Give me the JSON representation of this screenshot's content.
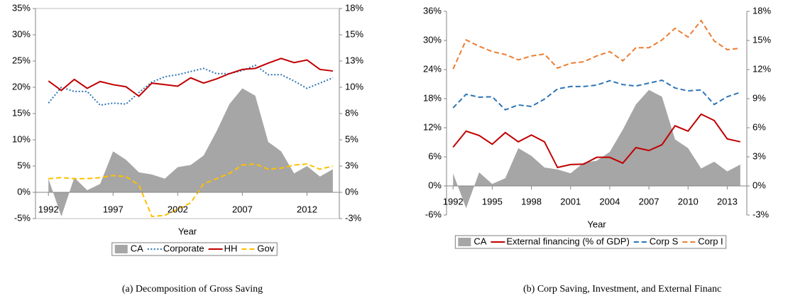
{
  "chart_data": [
    {
      "type": "line",
      "xlabel": "Year",
      "caption": "(a) Decomposition of Gross Saving",
      "x": [
        1992,
        1993,
        1994,
        1995,
        1996,
        1997,
        1998,
        1999,
        2000,
        2001,
        2002,
        2003,
        2004,
        2005,
        2006,
        2007,
        2008,
        2009,
        2010,
        2011,
        2012,
        2013,
        2014
      ],
      "xlim": [
        1991,
        2014.5
      ],
      "xticks": [
        1992,
        1997,
        2002,
        2007,
        2012
      ],
      "ylim": [
        -5,
        35
      ],
      "yticks": [
        {
          "value": -5,
          "label": "-5%"
        },
        {
          "value": 0,
          "label": "0%"
        },
        {
          "value": 5,
          "label": "5%"
        },
        {
          "value": 10,
          "label": "10%"
        },
        {
          "value": 15,
          "label": "15%"
        },
        {
          "value": 20,
          "label": "20%"
        },
        {
          "value": 25,
          "label": "25%"
        },
        {
          "value": 30,
          "label": "30%"
        },
        {
          "value": 35,
          "label": "35%"
        }
      ],
      "y2lim": [
        -2.5,
        17.5
      ],
      "y2ticks": [
        {
          "value": -2.5,
          "label": "-3%"
        },
        {
          "value": 0,
          "label": "0%"
        },
        {
          "value": 2.5,
          "label": "3%"
        },
        {
          "value": 5,
          "label": "5%"
        },
        {
          "value": 7.5,
          "label": "8%"
        },
        {
          "value": 10,
          "label": "10%"
        },
        {
          "value": 12.5,
          "label": "13%"
        },
        {
          "value": 15,
          "label": "15%"
        },
        {
          "value": 17.5,
          "label": "18%"
        }
      ],
      "series": [
        {
          "name": "CA",
          "color": "#a6a6a6",
          "style": "area",
          "axis": "y2",
          "values": [
            1.3,
            -2.3,
            1.4,
            0.2,
            0.8,
            3.9,
            3.1,
            1.9,
            1.7,
            1.3,
            2.4,
            2.6,
            3.5,
            5.8,
            8.4,
            9.9,
            9.2,
            4.8,
            3.9,
            1.8,
            2.5,
            1.5,
            2.2
          ]
        },
        {
          "name": "Corporate",
          "color": "#2e75b6",
          "style": "dotted",
          "values": [
            17,
            20,
            19.2,
            19.2,
            16.6,
            17,
            16.8,
            19,
            21,
            22,
            22.4,
            23,
            23.6,
            22.6,
            22.6,
            23.2,
            24.2,
            22.4,
            22.4,
            21.2,
            19.8,
            20.8,
            21.8
          ]
        },
        {
          "name": "HH",
          "color": "#c00000",
          "style": "solid",
          "values": [
            21.2,
            19.4,
            21.5,
            19.8,
            21.1,
            20.5,
            20.1,
            18.3,
            20.8,
            20.5,
            20.2,
            21.8,
            20.8,
            21.6,
            22.6,
            23.4,
            23.6,
            24.6,
            25.5,
            24.7,
            25.2,
            23.4,
            23.1
          ]
        },
        {
          "name": "Gov",
          "color": "#ffc000",
          "style": "dashed",
          "axis": "y2",
          "values": [
            1.3,
            1.4,
            1.3,
            1.3,
            1.4,
            1.6,
            1.5,
            0.7,
            -2.3,
            -2.2,
            -1.6,
            -1.0,
            0.8,
            1.3,
            1.8,
            2.6,
            2.7,
            2.2,
            2.3,
            2.6,
            2.7,
            2.2,
            2.5
          ]
        }
      ]
    },
    {
      "type": "line",
      "xlabel": "Year",
      "caption": "(b) Corp Saving, Investment, and External Financ",
      "x": [
        1992,
        1993,
        1994,
        1995,
        1996,
        1997,
        1998,
        1999,
        2000,
        2001,
        2002,
        2003,
        2004,
        2005,
        2006,
        2007,
        2008,
        2009,
        2010,
        2011,
        2012,
        2013,
        2014
      ],
      "xlim": [
        1991.5,
        2014.5
      ],
      "xticks": [
        1992,
        1995,
        1998,
        2001,
        2004,
        2007,
        2010,
        2013
      ],
      "ylim": [
        -6,
        36
      ],
      "yticks": [
        {
          "value": -6,
          "label": "-6%"
        },
        {
          "value": 0,
          "label": "0%"
        },
        {
          "value": 6,
          "label": "6%"
        },
        {
          "value": 12,
          "label": "12%"
        },
        {
          "value": 18,
          "label": "18%"
        },
        {
          "value": 24,
          "label": "24%"
        },
        {
          "value": 30,
          "label": "30%"
        },
        {
          "value": 36,
          "label": "36%"
        }
      ],
      "y2lim": [
        -3,
        18
      ],
      "y2ticks": [
        {
          "value": -3,
          "label": "-3%"
        },
        {
          "value": 0,
          "label": "0%"
        },
        {
          "value": 3,
          "label": "3%"
        },
        {
          "value": 6,
          "label": "6%"
        },
        {
          "value": 9,
          "label": "9%"
        },
        {
          "value": 12,
          "label": "12%"
        },
        {
          "value": 15,
          "label": "15%"
        },
        {
          "value": 18,
          "label": "18%"
        }
      ],
      "series": [
        {
          "name": "CA",
          "color": "#a6a6a6",
          "style": "area",
          "axis": "y2",
          "values": [
            1.3,
            -2.3,
            1.4,
            0.2,
            0.8,
            3.9,
            3.1,
            1.9,
            1.7,
            1.3,
            2.4,
            2.6,
            3.5,
            5.8,
            8.4,
            9.9,
            9.2,
            4.8,
            3.9,
            1.8,
            2.5,
            1.5,
            2.2
          ]
        },
        {
          "name": "External financing (% of GDP)",
          "color": "#c00000",
          "style": "solid",
          "values": [
            8.0,
            11.3,
            10.4,
            8.6,
            11.0,
            9.1,
            10.5,
            9.1,
            3.8,
            4.4,
            4.5,
            5.9,
            5.9,
            4.7,
            7.9,
            7.3,
            8.5,
            12.4,
            11.3,
            14.8,
            13.5,
            9.7,
            9.1
          ]
        },
        {
          "name": "Corp S",
          "color": "#2e75b6",
          "style": "dashed",
          "values": [
            16.1,
            18.9,
            18.3,
            18.4,
            15.7,
            16.7,
            16.4,
            17.9,
            20.0,
            20.5,
            20.5,
            20.8,
            21.7,
            20.9,
            20.6,
            21.2,
            21.8,
            20.2,
            19.6,
            19.8,
            16.8,
            18.4,
            19.3
          ]
        },
        {
          "name": "Corp I",
          "color": "#ed7d31",
          "style": "dashed",
          "values": [
            24.1,
            30.1,
            28.8,
            27.7,
            27.1,
            26.0,
            26.8,
            27.2,
            24.3,
            25.3,
            25.6,
            26.8,
            27.7,
            25.8,
            28.5,
            28.5,
            30.1,
            32.5,
            30.7,
            34.1,
            29.9,
            28.1,
            28.4
          ]
        }
      ]
    }
  ]
}
